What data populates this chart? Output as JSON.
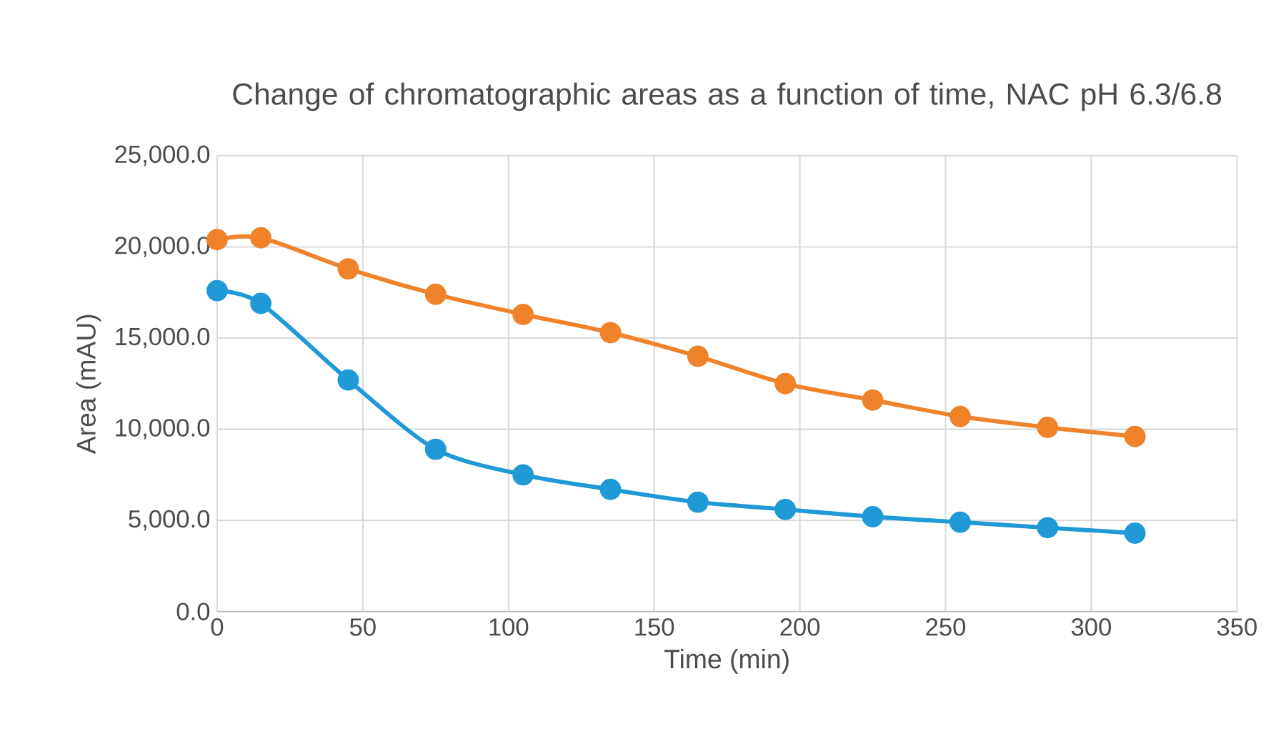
{
  "chart_data": {
    "type": "line",
    "title": "Change of chromatographic areas as a function of time, NAC pH 6.3/6.8",
    "xlabel": "Time (min)",
    "ylabel": "Area (mAU)",
    "x": [
      0,
      15,
      45,
      75,
      105,
      135,
      165,
      195,
      225,
      255,
      285,
      315
    ],
    "series": [
      {
        "color": "#f0822a",
        "values": [
          20400,
          20500,
          18800,
          17400,
          16300,
          15300,
          14000,
          12500,
          11600,
          10700,
          10100,
          9600
        ]
      },
      {
        "color": "#1f9ad6",
        "values": [
          17600,
          16900,
          12700,
          8900,
          7500,
          6700,
          6000,
          5600,
          5200,
          4900,
          4600,
          4300
        ]
      }
    ],
    "xlim": [
      0,
      350
    ],
    "xticks": [
      0,
      50,
      100,
      150,
      200,
      250,
      300,
      350
    ],
    "ylim": [
      0,
      25000
    ],
    "yticks": [
      {
        "value": 0,
        "label": "0.0"
      },
      {
        "value": 5000,
        "label": "5,000.0"
      },
      {
        "value": 10000,
        "label": "10,000.0"
      },
      {
        "value": 15000,
        "label": "15,000.0"
      },
      {
        "value": 20000,
        "label": "20,000.0"
      },
      {
        "value": 25000,
        "label": "25,000.0"
      }
    ],
    "grid": true,
    "marker": "circle",
    "line_style": "solid"
  }
}
